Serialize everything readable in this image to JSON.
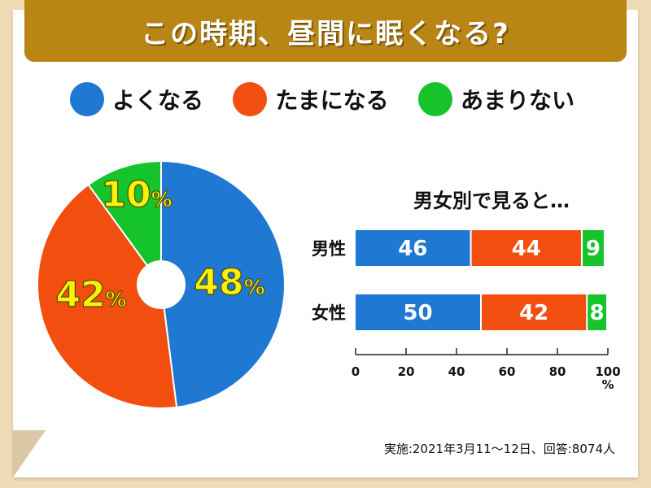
{
  "title": "この時期、昼間に眠くなる?",
  "colors": {
    "often": "#1f78d1",
    "sometimes": "#f24e0f",
    "rarely": "#14c42a",
    "pie_label": "#f7f20a"
  },
  "legend": [
    {
      "label": "よくなる",
      "color": "#1f78d1"
    },
    {
      "label": "たまになる",
      "color": "#f24e0f"
    },
    {
      "label": "あまりない",
      "color": "#14c42a"
    }
  ],
  "chart_data": [
    {
      "type": "pie",
      "categories": [
        "よくなる",
        "たまになる",
        "あまりない"
      ],
      "values": [
        48,
        42,
        10
      ],
      "labels": [
        "48",
        "42",
        "10"
      ],
      "unit": "%",
      "donut": true
    },
    {
      "type": "bar",
      "orientation": "horizontal",
      "stacked": true,
      "title": "男女別で見ると…",
      "categories": [
        "男性",
        "女性"
      ],
      "series": [
        {
          "name": "よくなる",
          "values": [
            46,
            50
          ]
        },
        {
          "name": "たまになる",
          "values": [
            44,
            42
          ]
        },
        {
          "name": "あまりない",
          "values": [
            9,
            8
          ]
        }
      ],
      "xlim": [
        0,
        100
      ],
      "xticks": [
        "0",
        "20",
        "40",
        "60",
        "80",
        "100"
      ],
      "xunit": "%",
      "grid": false
    }
  ],
  "footer": "実施:2021年3月11〜12日、回答:8074人"
}
